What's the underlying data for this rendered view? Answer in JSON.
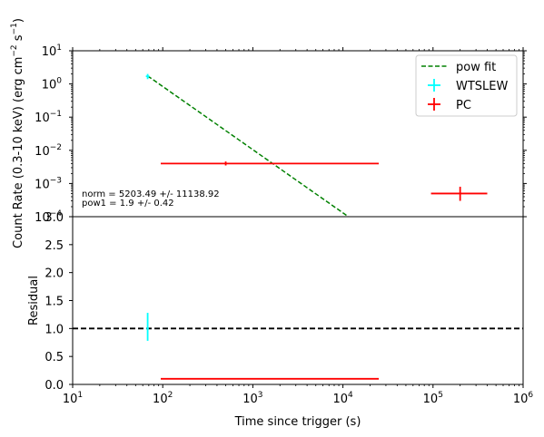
{
  "chart_data": [
    {
      "type": "scatter",
      "panel": "top",
      "ylabel": "Count Rate (0.3-10 keV) (erg cm$^{-2}$ s$^{-1}$)",
      "xscale": "log",
      "yscale": "log",
      "xlim": [
        10,
        1000000
      ],
      "ylim": [
        0.0001,
        10
      ],
      "yticks": [
        0.0001,
        0.001,
        0.01,
        0.1,
        1,
        10
      ],
      "legend_position": "top-right",
      "series": [
        {
          "name": "pow fit",
          "kind": "line",
          "style": "dashed",
          "color": "#008000",
          "points": [
            [
              68,
              1.75
            ],
            [
              11500,
              0.0001
            ]
          ]
        },
        {
          "name": "WTSLEW",
          "kind": "errorbar",
          "color": "#00ffff",
          "points": [
            {
              "x": 68,
              "y": 1.7,
              "xerr": [
                65,
                71
              ],
              "yerr": [
                1.4,
                2.0
              ]
            }
          ]
        },
        {
          "name": "PC",
          "kind": "errorbar",
          "color": "#ff0000",
          "points": [
            {
              "x": 500,
              "y": 0.004,
              "xerr": [
                95,
                25000
              ],
              "yerr": [
                0.0035,
                0.0046
              ]
            },
            {
              "x": 200000,
              "y": 0.0005,
              "xerr": [
                95000,
                400000
              ],
              "yerr": [
                0.0003,
                0.0008
              ]
            }
          ]
        }
      ],
      "annotations": [
        "norm = 5203.49 +/- 11138.92",
        "pow1 = 1.9 +/- 0.42"
      ]
    },
    {
      "type": "scatter",
      "panel": "bottom",
      "xlabel": "Time since trigger (s)",
      "ylabel": "Residual",
      "xscale": "log",
      "xlim": [
        10,
        1000000
      ],
      "ylim": [
        0.0,
        3.0
      ],
      "yticks": [
        0.0,
        0.5,
        1.0,
        1.5,
        2.0,
        2.5,
        3.0
      ],
      "xticks": [
        10,
        100,
        1000,
        10000,
        100000,
        1000000
      ],
      "reference_line": {
        "y": 1.0,
        "style": "dashed",
        "color": "#000000"
      },
      "series": [
        {
          "name": "WTSLEW",
          "kind": "errorbar",
          "color": "#00ffff",
          "points": [
            {
              "x": 68,
              "y": 1.0,
              "xerr": [
                66,
                70
              ],
              "yerr": [
                0.78,
                1.28
              ]
            }
          ]
        },
        {
          "name": "PC",
          "kind": "errorbar",
          "color": "#ff0000",
          "points": [
            {
              "x": 1500,
              "y": 0.1,
              "xerr": [
                95,
                25000
              ],
              "yerr": [
                0.1,
                0.1
              ]
            }
          ]
        }
      ]
    }
  ]
}
